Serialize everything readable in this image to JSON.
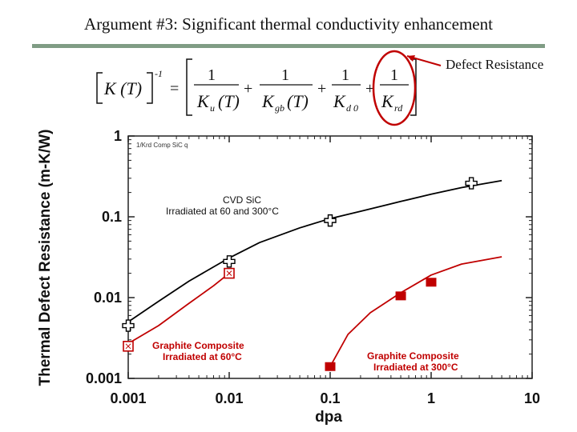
{
  "slide": {
    "title": "Argument #3:   Significant thermal conductivity enhancement",
    "callout": "Defect Resistance",
    "callout_color": "#c00000"
  },
  "equation": {
    "lhs": "K (T)",
    "lhs_exp": "-1",
    "numerators": [
      "1",
      "1",
      "1",
      "1"
    ],
    "terms": [
      {
        "main": "K",
        "sub": "u",
        "arg": "(T)"
      },
      {
        "main": "K",
        "sub": "gb",
        "arg": "(T)"
      },
      {
        "main": "K",
        "sub": "d 0",
        "arg": ""
      },
      {
        "main": "K",
        "sub": "rd",
        "arg": ""
      }
    ]
  },
  "chart_data": {
    "type": "line",
    "xscale": "log",
    "yscale": "log",
    "xlabel": "dpa",
    "ylabel": "Thermal Defect Resistance (m-K/W)",
    "xlim": [
      0.001,
      10
    ],
    "ylim": [
      0.001,
      1
    ],
    "xticks": [
      {
        "value": 0.001,
        "label": "0.001"
      },
      {
        "value": 0.01,
        "label": "0.01"
      },
      {
        "value": 0.1,
        "label": "0.1"
      },
      {
        "value": 1,
        "label": "1"
      },
      {
        "value": 10,
        "label": "10"
      }
    ],
    "yticks": [
      {
        "value": 1,
        "label": "1"
      },
      {
        "value": 0.1,
        "label": "0.1"
      },
      {
        "value": 0.01,
        "label": "0.01"
      },
      {
        "value": 0.001,
        "label": "0.001"
      }
    ],
    "inner_legend": "1/Krd Comp SiC q",
    "series": [
      {
        "name": "CVD SiC",
        "name2": "Irradiated at 60 and 300°C",
        "color": "#000000",
        "marker": "open-cross",
        "curve": {
          "x": [
            0.001,
            0.002,
            0.004,
            0.007,
            0.01,
            0.02,
            0.05,
            0.1,
            0.2,
            0.5,
            1,
            2,
            5
          ],
          "y": [
            0.005,
            0.009,
            0.016,
            0.024,
            0.031,
            0.048,
            0.073,
            0.095,
            0.117,
            0.155,
            0.19,
            0.23,
            0.28
          ]
        },
        "points": {
          "x": [
            0.001,
            0.01,
            0.1,
            2.5
          ],
          "y": [
            0.0045,
            0.028,
            0.09,
            0.26
          ]
        }
      },
      {
        "name": "Graphite Composite",
        "name2": "Irradiated at 60°C",
        "color": "#c00000",
        "marker": "open-square",
        "curve": {
          "x": [
            0.001,
            0.002,
            0.004,
            0.007,
            0.01
          ],
          "y": [
            0.0027,
            0.0045,
            0.0085,
            0.014,
            0.02
          ]
        },
        "points": {
          "x": [
            0.001,
            0.01
          ],
          "y": [
            0.0025,
            0.02
          ]
        }
      },
      {
        "name": "Graphite Composite",
        "name2": "Irradiated at 300°C",
        "color": "#c00000",
        "marker": "filled-square",
        "curve": {
          "x": [
            0.1,
            0.15,
            0.25,
            0.5,
            1,
            2,
            5
          ],
          "y": [
            0.0014,
            0.0035,
            0.0065,
            0.0115,
            0.019,
            0.026,
            0.032
          ]
        },
        "points": {
          "x": [
            0.1,
            0.5,
            1
          ],
          "y": [
            0.0014,
            0.0105,
            0.0155
          ]
        }
      }
    ]
  }
}
